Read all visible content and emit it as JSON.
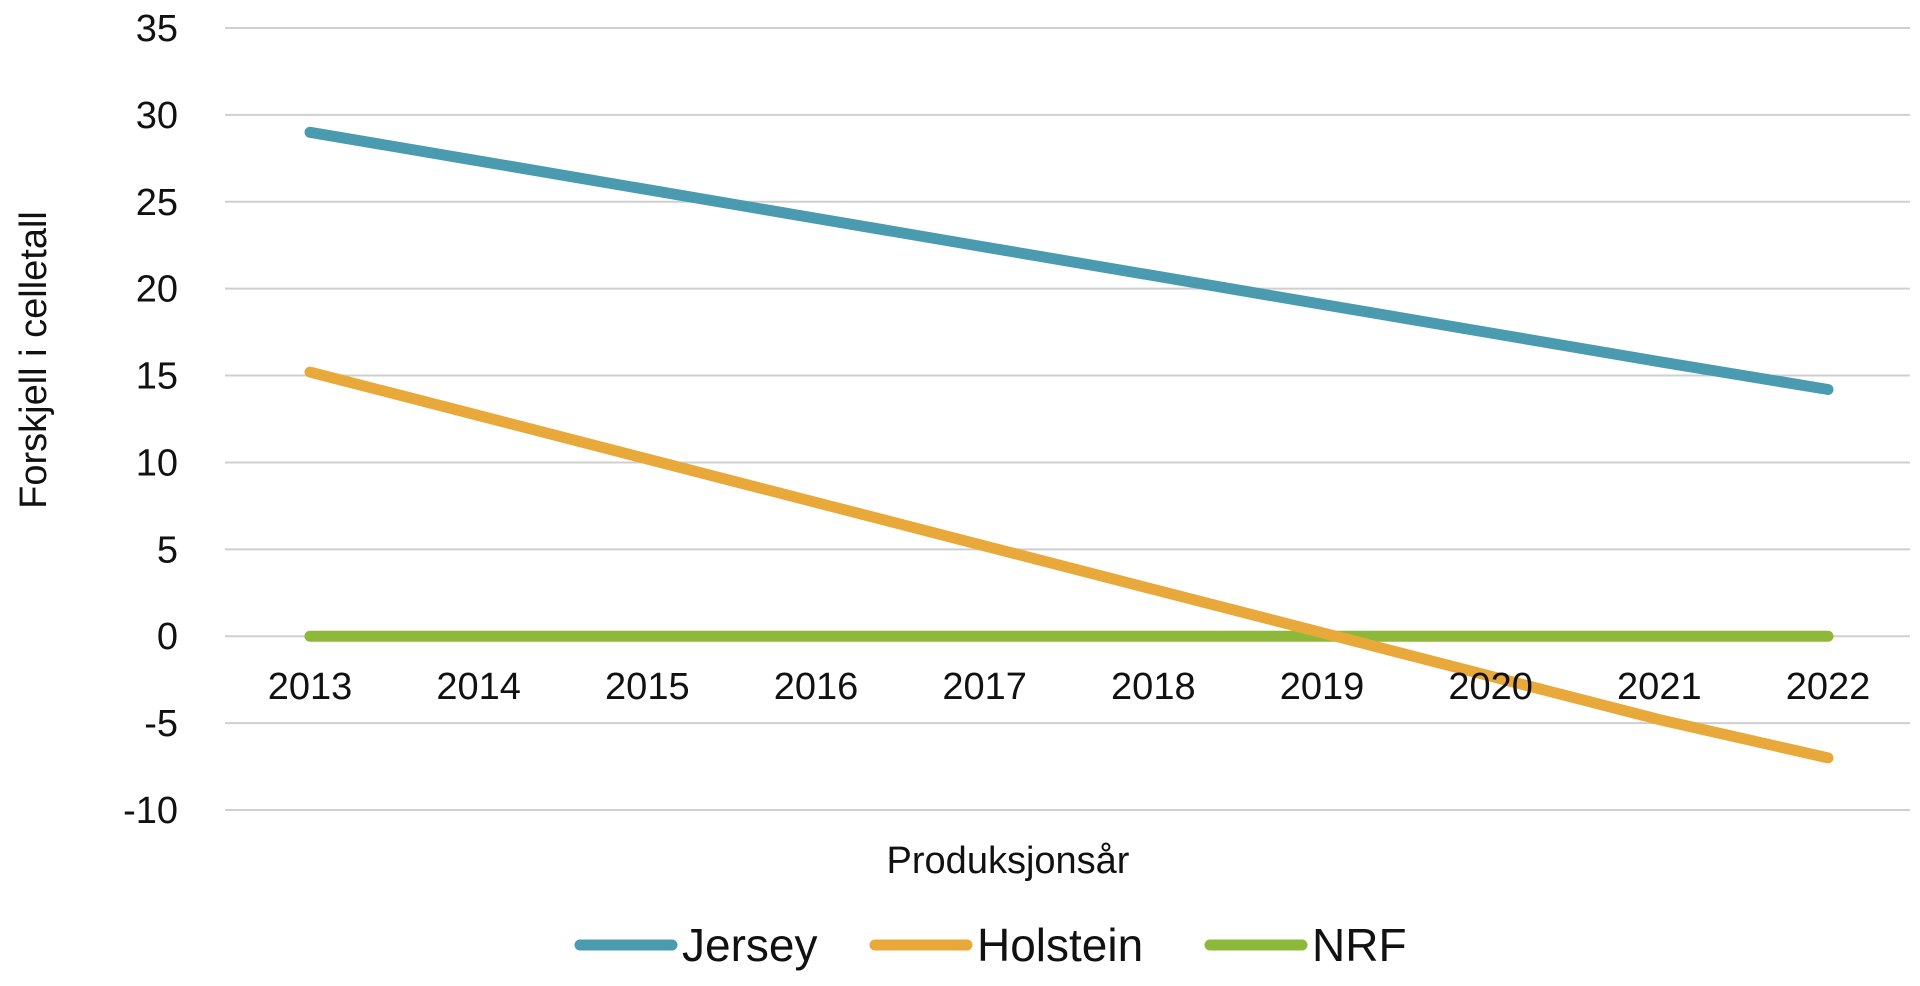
{
  "chart_data": {
    "type": "line",
    "title": "",
    "xlabel": "Produksjonsår",
    "ylabel": "Forskjell i celletall",
    "categories": [
      "2013",
      "2014",
      "2015",
      "2016",
      "2017",
      "2018",
      "2019",
      "2020",
      "2021",
      "2022"
    ],
    "ylim": [
      -10,
      35
    ],
    "yticks": [
      "35",
      "30",
      "25",
      "20",
      "15",
      "10",
      "5",
      "0",
      "-5",
      "-10"
    ],
    "grid": true,
    "legend_position": "bottom",
    "series": [
      {
        "name": "Jersey",
        "color": "#4A9BB0",
        "values": [
          29.0,
          27.35,
          25.7,
          24.05,
          22.4,
          20.75,
          19.1,
          17.45,
          15.8,
          14.2
        ]
      },
      {
        "name": "Holstein",
        "color": "#E8A93A",
        "values": [
          15.2,
          12.7,
          10.2,
          7.7,
          5.2,
          2.7,
          0.2,
          -2.3,
          -4.8,
          -7.0
        ]
      },
      {
        "name": "NRF",
        "color": "#8DB83A",
        "values": [
          0,
          0,
          0,
          0,
          0,
          0,
          0,
          0,
          0,
          0
        ]
      }
    ]
  }
}
